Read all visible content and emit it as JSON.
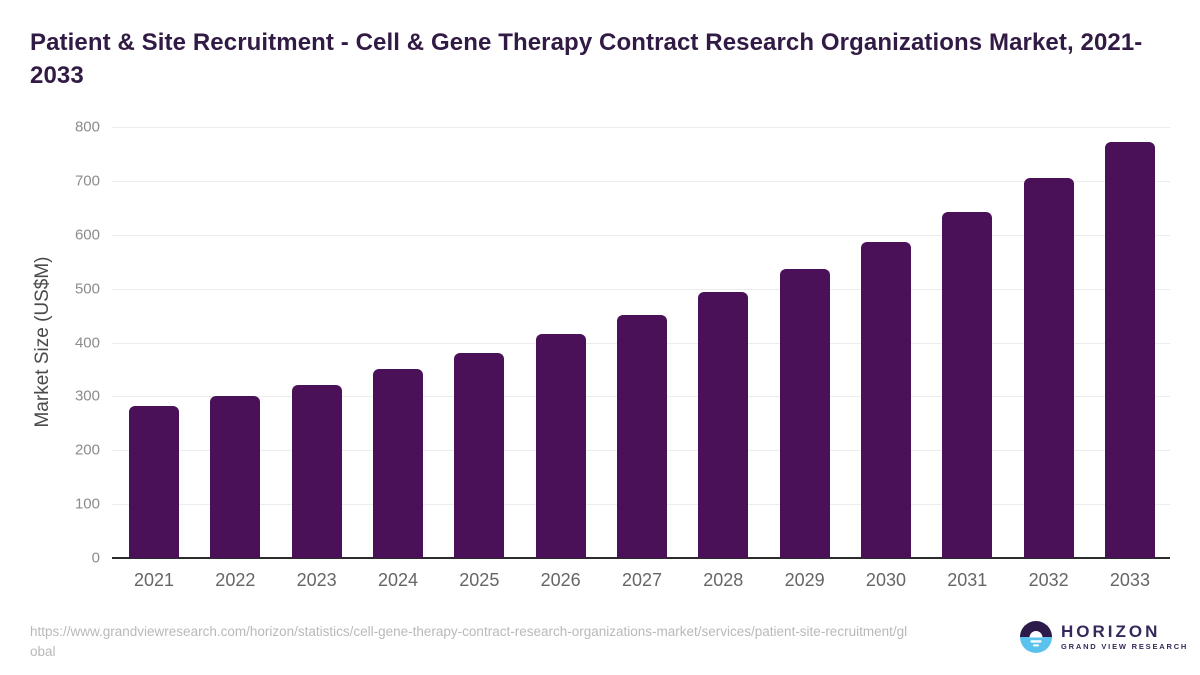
{
  "chart_data": {
    "type": "bar",
    "title": "Patient & Site Recruitment - Cell & Gene Therapy Contract Research Organizations Market, 2021-2033",
    "xlabel": "",
    "ylabel": "Market Size (US$M)",
    "categories": [
      "2021",
      "2022",
      "2023",
      "2024",
      "2025",
      "2026",
      "2027",
      "2028",
      "2029",
      "2030",
      "2031",
      "2032",
      "2033"
    ],
    "values": [
      282,
      301,
      322,
      350,
      381,
      415,
      451,
      493,
      537,
      587,
      642,
      706,
      772
    ],
    "ylim": [
      0,
      800
    ],
    "yticks": [
      0,
      100,
      200,
      300,
      400,
      500,
      600,
      700,
      800
    ],
    "grid": true,
    "legend_position": "none",
    "bar_color": "#4a1158"
  },
  "colors": {
    "title": "#311b45",
    "bar": "#4a1158",
    "gridline": "#ececec",
    "axis_line": "#2b2b2b",
    "y_tick_label": "#8c8c8c",
    "x_tick_label": "#666666",
    "y_axis_title": "#4a4a4a",
    "source_url": "#b9b9b9",
    "logo_dark": "#2b1a4a",
    "logo_blue": "#5bc2ee",
    "logo_text": "#37285c"
  },
  "footer": {
    "source_url": "https://www.grandviewresearch.com/horizon/statistics/cell-gene-therapy-contract-research-organizations-market/services/patient-site-recruitment/global",
    "logo": {
      "brand": "HORIZON",
      "subtitle": "GRAND VIEW RESEARCH"
    }
  }
}
